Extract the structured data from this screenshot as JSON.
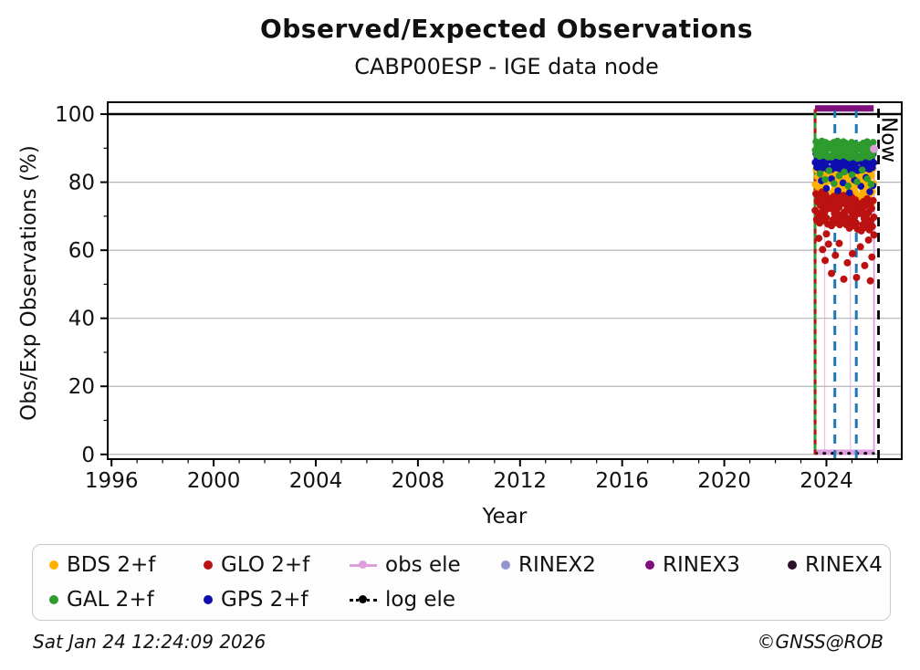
{
  "header": {
    "title": "Observed/Expected Observations",
    "subtitle": "CABP00ESP - IGE data node"
  },
  "footer": {
    "timestamp": "Sat Jan 24 12:24:09 2026",
    "copyright": "©GNSS@ROB"
  },
  "chart_data": {
    "type": "scatter",
    "title": "Observed/Expected Observations",
    "subtitle": "CABP00ESP - IGE data node",
    "xlabel": "Year",
    "ylabel": "Obs/Exp Observations (%)",
    "xlim": [
      1995.85,
      2026.95
    ],
    "ylim": [
      -1.4,
      103.5
    ],
    "xticks": {
      "major": [
        1996,
        2000,
        2004,
        2008,
        2012,
        2016,
        2020,
        2024
      ],
      "minor_step": 1
    },
    "yticks": {
      "major": [
        0,
        20,
        40,
        60,
        80,
        100
      ],
      "minor_step": 10
    },
    "grid": {
      "horizontal_only": true,
      "color": "#b4b4b4"
    },
    "annotations": {
      "now_label": "Now",
      "now_x": 2026.04
    },
    "lines": [
      {
        "id": "hline-100",
        "type": "h",
        "y": 100,
        "x1": 1995.85,
        "x2": 2026.95,
        "color": "#000000",
        "width": 2.5
      },
      {
        "id": "rinex3-band",
        "type": "h",
        "y": 101.7,
        "x1": 2023.553,
        "x2": 2025.85,
        "color": "#7D107D",
        "width": 7
      },
      {
        "id": "obs-ele-baseline",
        "type": "h",
        "y": 0.6,
        "x1": 2023.56,
        "x2": 2025.865,
        "color": "#DDA0DD",
        "width": 6
      },
      {
        "id": "log-ele-baseline",
        "type": "h",
        "y": 0.3,
        "x1": 2023.58,
        "x2": 2025.85,
        "color": "#000000",
        "width": 3,
        "dash": "1 8",
        "cap": "round"
      },
      {
        "id": "obs-ele-spike-1",
        "type": "v",
        "x": 2023.93,
        "y1": 0.6,
        "y2": 70,
        "color": "#DDA0DD",
        "width": 1.2,
        "opacity": 0.65
      },
      {
        "id": "obs-ele-spike-2",
        "type": "v",
        "x": 2024.94,
        "y1": 0.6,
        "y2": 74,
        "color": "#DDA0DD",
        "width": 1.2,
        "opacity": 0.65
      },
      {
        "id": "obs-ele-end",
        "type": "v",
        "x": 2025.865,
        "y1": 0.6,
        "y2": 89.8,
        "color": "#DDA0DD",
        "width": 1.8
      },
      {
        "id": "data-start-gal",
        "type": "v",
        "x": 2023.553,
        "y1": 0,
        "y2": 101.5,
        "color": "#2E9B2E",
        "width": 3
      },
      {
        "id": "data-start-glo",
        "type": "v",
        "x": 2023.558,
        "y1": 0,
        "y2": 101.5,
        "color": "#BB1111",
        "width": 3,
        "dash": "5 6"
      },
      {
        "id": "sitelog-event-1",
        "type": "v",
        "x": 2024.33,
        "y1": -1.4,
        "y2": 101,
        "color": "#1f77b4",
        "width": 3,
        "dash": "10 7"
      },
      {
        "id": "sitelog-event-2",
        "type": "v",
        "x": 2025.17,
        "y1": -1.4,
        "y2": 101,
        "color": "#1f77b4",
        "width": 3,
        "dash": "10 7"
      },
      {
        "id": "now-line",
        "type": "v",
        "x": 2026.04,
        "y1": -1.4,
        "y2": 103.5,
        "color": "#000000",
        "width": 2.8,
        "dash": "10 7"
      }
    ],
    "point_markers": [
      {
        "id": "obs-ele-endpoint",
        "x": 2025.865,
        "y": 89.8,
        "color": "#DDA0DD",
        "r": 4.5
      }
    ],
    "series": [
      {
        "id": "bds",
        "name": "BDS 2+f",
        "color": "#FFB000",
        "r": 3.8,
        "x_start": 2023.56,
        "x_step": 0.0291,
        "y": [
          79.3,
          83.7,
          76.9,
          81.6,
          78.5,
          82.7,
          76.0,
          80.6,
          77.7,
          84.1,
          79.9,
          76.6,
          82.1,
          78.9,
          83.4,
          77.3,
          81.1,
          75.7,
          82.4,
          80.3,
          80.3,
          82.4,
          75.7,
          81.1,
          77.3,
          83.4,
          78.9,
          82.1,
          76.6,
          79.9,
          84.1,
          77.7,
          80.6,
          76.0,
          82.7,
          78.5,
          81.6,
          76.9,
          83.7,
          79.3,
          78.7,
          83.1,
          76.3,
          81.0,
          77.9,
          82.1,
          75.4,
          80.0,
          77.1,
          83.5,
          79.3,
          76.0,
          81.5,
          78.3,
          82.8,
          76.7,
          80.5,
          75.1,
          81.8,
          79.7,
          80.6,
          82.7,
          76.0,
          81.4,
          77.6,
          83.7,
          79.2,
          82.4,
          76.9,
          80.2,
          84.4,
          78.0,
          80.9,
          76.3,
          83.0,
          78.8,
          81.9,
          77.2,
          84.0,
          79.6
        ],
        "extra": [
          [
            2023.9,
            85.2
          ],
          [
            2024.6,
            74.3
          ],
          [
            2025.3,
            85.0
          ],
          [
            2025.8,
            74.0
          ],
          [
            2024.25,
            73.8
          ]
        ]
      },
      {
        "id": "glo",
        "name": "GLO 2+f",
        "color": "#BB1111",
        "r": 4.0,
        "x_start": 2023.56,
        "x_step": 0.0291,
        "y": [
          71.7,
          76.6,
          69.0,
          74.3,
          70.8,
          75.5,
          68.0,
          73.2,
          69.9,
          77.1,
          72.4,
          68.7,
          74.8,
          71.3,
          76.3,
          69.5,
          73.7,
          67.7,
          75.2,
          72.8,
          72.3,
          74.7,
          67.2,
          73.2,
          69.0,
          75.8,
          70.8,
          74.3,
          68.2,
          71.9,
          76.6,
          69.4,
          72.7,
          67.5,
          75.0,
          70.3,
          73.8,
          68.5,
          76.1,
          71.2,
          70.2,
          75.1,
          67.5,
          72.8,
          69.3,
          74.0,
          66.5,
          71.7,
          68.4,
          75.6,
          70.9,
          67.2,
          73.3,
          69.8,
          74.8,
          68.0,
          72.2,
          66.2,
          73.7,
          71.3,
          70.8,
          73.2,
          65.7,
          71.7,
          67.5,
          74.3,
          69.3,
          73.0,
          66.7,
          70.4,
          75.1,
          67.9,
          71.2,
          66.0,
          73.5,
          68.8,
          72.3,
          67.0,
          74.6,
          69.7
        ],
        "extra": [
          [
            2023.7,
            63.5
          ],
          [
            2023.85,
            60.2
          ],
          [
            2023.95,
            57.0
          ],
          [
            2024.08,
            61.8
          ],
          [
            2024.2,
            53.2
          ],
          [
            2024.35,
            58.5
          ],
          [
            2024.5,
            62.0
          ],
          [
            2024.68,
            51.5
          ],
          [
            2024.82,
            56.3
          ],
          [
            2025.02,
            59.0
          ],
          [
            2025.18,
            52.0
          ],
          [
            2025.33,
            61.0
          ],
          [
            2025.5,
            55.5
          ],
          [
            2025.65,
            63.0
          ],
          [
            2025.78,
            58.0
          ],
          [
            2025.86,
            64.5
          ],
          [
            2024.0,
            64.8
          ],
          [
            2025.72,
            51.0
          ]
        ]
      },
      {
        "id": "gps",
        "name": "GPS 2+f",
        "color": "#0F0FAF",
        "r": 3.8,
        "x_start": 2023.56,
        "x_step": 0.0291,
        "y": [
          85.8,
          88.3,
          84.4,
          87.1,
          85.3,
          87.8,
          83.9,
          86.6,
          84.8,
          88.6,
          86.1,
          84.2,
          87.4,
          85.6,
          88.2,
          84.6,
          86.8,
          83.7,
          87.6,
          86.4,
          86.4,
          87.6,
          83.7,
          86.8,
          84.6,
          88.2,
          85.6,
          87.4,
          84.2,
          86.1,
          88.6,
          84.8,
          86.6,
          83.9,
          87.8,
          85.3,
          87.1,
          84.4,
          88.3,
          85.8,
          85.5,
          88.0,
          84.1,
          86.8,
          85.0,
          87.5,
          83.6,
          86.3,
          84.5,
          88.3,
          85.8,
          83.9,
          87.1,
          85.3,
          87.9,
          84.3,
          86.5,
          83.4,
          87.3,
          86.1,
          86.3,
          87.5,
          83.6,
          86.7,
          84.5,
          88.1,
          85.5,
          87.3,
          84.1,
          86.0,
          88.5,
          84.7,
          86.5,
          83.8,
          87.7,
          85.2,
          87.0,
          84.3,
          88.2,
          85.7
        ],
        "extra": [
          [
            2023.8,
            80.4
          ],
          [
            2024.0,
            78.2
          ],
          [
            2024.2,
            81.0
          ],
          [
            2024.45,
            77.5
          ],
          [
            2024.65,
            79.8
          ],
          [
            2024.9,
            76.9
          ],
          [
            2025.1,
            80.6
          ],
          [
            2025.35,
            78.8
          ],
          [
            2025.55,
            81.4
          ],
          [
            2025.7,
            77.2
          ],
          [
            2025.82,
            79.0
          ]
        ]
      },
      {
        "id": "gal",
        "name": "GAL 2+f",
        "color": "#2E9B2E",
        "r": 3.8,
        "x_start": 2023.56,
        "x_step": 0.0291,
        "y": [
          89.4,
          91.9,
          88.1,
          90.7,
          89.0,
          91.3,
          87.6,
          90.2,
          88.5,
          92.1,
          89.8,
          87.9,
          91.0,
          89.2,
          91.7,
          88.3,
          90.4,
          87.4,
          91.2,
          90.0,
          90.0,
          91.2,
          87.4,
          90.4,
          88.3,
          91.7,
          89.2,
          91.0,
          87.9,
          89.8,
          92.1,
          88.5,
          90.2,
          87.6,
          91.3,
          89.0,
          90.7,
          88.1,
          91.9,
          89.4,
          89.0,
          91.5,
          87.7,
          90.3,
          88.6,
          90.9,
          87.2,
          89.8,
          88.1,
          91.7,
          89.4,
          87.5,
          90.6,
          88.8,
          91.3,
          87.9,
          90.0,
          87.0,
          90.8,
          89.6,
          89.8,
          91.0,
          87.2,
          90.2,
          88.1,
          91.5,
          89.0,
          90.8,
          87.7,
          89.6,
          91.9,
          88.3,
          90.0,
          87.4,
          91.1,
          88.8,
          90.5,
          87.9,
          91.7,
          89.2
        ],
        "extra": [
          [
            2023.75,
            82.5
          ],
          [
            2023.95,
            80.8
          ],
          [
            2024.1,
            83.4
          ],
          [
            2024.3,
            79.6
          ],
          [
            2024.5,
            81.9
          ],
          [
            2024.7,
            83.0
          ],
          [
            2024.85,
            78.9
          ],
          [
            2025.0,
            82.2
          ],
          [
            2025.2,
            80.1
          ],
          [
            2025.4,
            83.6
          ],
          [
            2025.6,
            81.0
          ],
          [
            2025.75,
            79.4
          ]
        ]
      }
    ]
  },
  "legend": {
    "items": [
      {
        "id": "bds",
        "label": "BDS 2+f",
        "marker": "dot",
        "color": "#FFB000",
        "row": 1,
        "col": 1
      },
      {
        "id": "glo",
        "label": "GLO 2+f",
        "marker": "dot",
        "color": "#BB1111",
        "row": 1,
        "col": 2
      },
      {
        "id": "obs-ele",
        "label": "obs ele",
        "marker": "line-dot",
        "color": "#DDA0DD",
        "row": 1,
        "col": 3
      },
      {
        "id": "rinex2",
        "label": "RINEX2",
        "marker": "dot",
        "color": "#9494CE",
        "row": 1,
        "col": 4
      },
      {
        "id": "rinex3",
        "label": "RINEX3",
        "marker": "dot",
        "color": "#7D107D",
        "row": 1,
        "col": 5
      },
      {
        "id": "rinex4",
        "label": "RINEX4",
        "marker": "dot",
        "color": "#2B0F2B",
        "row": 1,
        "col": 6
      },
      {
        "id": "gal",
        "label": "GAL 2+f",
        "marker": "dot",
        "color": "#2E9B2E",
        "row": 2,
        "col": 1
      },
      {
        "id": "gps",
        "label": "GPS 2+f",
        "marker": "dot",
        "color": "#0F0FAF",
        "row": 2,
        "col": 2
      },
      {
        "id": "log-ele",
        "label": "log ele",
        "marker": "dotted-line-dot",
        "color": "#000000",
        "row": 2,
        "col": 3
      }
    ]
  }
}
